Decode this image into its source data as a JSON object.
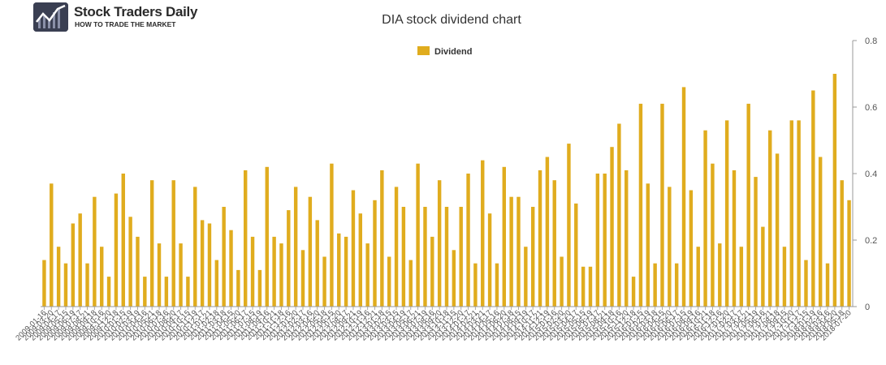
{
  "logo": {
    "name": "Stock Traders Daily",
    "tagline": "HOW TO TRADE THE MARKET"
  },
  "chart_data": {
    "type": "bar",
    "title": "DIA stock dividend chart",
    "legend": {
      "position": "top-center",
      "entries": [
        "Dividend"
      ]
    },
    "series": [
      {
        "name": "Dividend",
        "color": "#e0ac1e",
        "values": [
          0.14,
          0.37,
          0.18,
          0.13,
          0.25,
          0.28,
          0.13,
          0.33,
          0.18,
          0.09,
          0.34,
          0.4,
          0.27,
          0.21,
          0.09,
          0.38,
          0.19,
          0.09,
          0.38,
          0.19,
          0.09,
          0.36,
          0.26,
          0.25,
          0.14,
          0.3,
          0.23,
          0.11,
          0.41,
          0.21,
          0.11,
          0.42,
          0.21,
          0.19,
          0.29,
          0.36,
          0.17,
          0.33,
          0.26,
          0.15,
          0.43,
          0.22,
          0.21,
          0.35,
          0.28,
          0.19,
          0.32,
          0.41,
          0.15,
          0.36,
          0.3,
          0.14,
          0.43,
          0.3,
          0.21,
          0.38,
          0.3,
          0.17,
          0.3,
          0.4,
          0.13,
          0.44,
          0.28,
          0.13,
          0.42,
          0.33,
          0.33,
          0.18,
          0.3,
          0.41,
          0.45,
          0.38,
          0.15,
          0.49,
          0.31,
          0.12,
          0.12,
          0.4,
          0.4,
          0.48,
          0.55,
          0.41,
          0.09,
          0.61,
          0.37,
          0.13,
          0.61,
          0.36,
          0.13,
          0.66,
          0.35,
          0.18,
          0.53,
          0.43,
          0.19,
          0.56,
          0.41,
          0.18,
          0.61,
          0.39,
          0.24,
          0.53,
          0.46,
          0.18,
          0.56,
          0.56,
          0.14,
          0.65,
          0.45,
          0.13,
          0.7,
          0.38,
          0.32
        ]
      }
    ],
    "x_tick_labels": [
      "2009-01-16",
      "2009-03-20",
      "2009-04-17",
      "2009-05-15",
      "2009-06-19",
      "2009-07-17",
      "2009-08-21",
      "2009-09-18",
      "2009-10-16",
      "2009-11-20",
      "2009-12-18",
      "2010-01-15",
      "2010-02-19",
      "2010-03-19",
      "2010-04-16",
      "2010-05-21",
      "2010-06-18",
      "2010-07-16",
      "2010-08-20",
      "2010-09-17",
      "2010-10-15",
      "2010-11-19",
      "2010-12-17",
      "2011-01-21",
      "2011-02-18",
      "2011-03-18",
      "2011-04-15",
      "2011-05-20",
      "2011-06-17",
      "2011-07-15",
      "2011-08-19",
      "2011-09-16",
      "2011-10-21",
      "2011-11-18",
      "2011-12-16",
      "2012-01-20",
      "2012-02-17",
      "2012-03-16",
      "2012-04-20",
      "2012-05-18",
      "2012-06-15",
      "2012-07-20",
      "2012-08-17",
      "2012-09-21",
      "2012-10-19",
      "2012-11-16",
      "2012-12-21",
      "2013-01-18",
      "2013-02-15",
      "2013-03-15",
      "2013-04-19",
      "2013-05-17",
      "2013-06-21",
      "2013-07-19",
      "2013-08-16",
      "2013-09-20",
      "2013-10-18",
      "2013-11-15",
      "2013-12-20",
      "2014-01-17",
      "2014-02-21",
      "2014-03-21",
      "2014-04-17",
      "2014-05-16",
      "2014-06-20",
      "2014-07-18",
      "2014-08-15",
      "2014-09-19",
      "2014-10-17",
      "2014-11-21",
      "2014-12-19",
      "2015-01-16",
      "2015-02-20",
      "2015-03-20",
      "2015-04-17",
      "2015-05-15",
      "2015-06-19",
      "2015-07-17",
      "2015-08-21",
      "2015-09-18",
      "2015-10-16",
      "2015-11-20",
      "2015-12-18",
      "2016-01-15",
      "2016-02-19",
      "2016-03-18",
      "2016-04-15",
      "2016-05-20",
      "2016-06-17",
      "2016-07-15",
      "2016-08-19",
      "2016-09-16",
      "2016-10-21",
      "2016-11-18",
      "2016-12-16",
      "2017-01-20",
      "2017-02-17",
      "2017-03-17",
      "2017-04-21",
      "2017-05-19",
      "2017-06-16",
      "2017-07-21",
      "2017-08-18",
      "2017-09-15",
      "2017-10-20",
      "2017-11-17",
      "2017-12-15",
      "2018-01-19",
      "2018-02-16",
      "2018-03-16",
      "2018-04-20",
      "2018-05-18",
      "2018-07-20"
    ],
    "xlabel": "",
    "ylabel": "",
    "ylim": [
      0,
      0.8
    ],
    "y_ticks": [
      0,
      0.2,
      0.4,
      0.6,
      0.8
    ],
    "y_tick_labels": [
      "0",
      "0.2",
      "0.4",
      "0.6",
      "0.8"
    ],
    "y_axis_side": "right",
    "grid": false
  }
}
